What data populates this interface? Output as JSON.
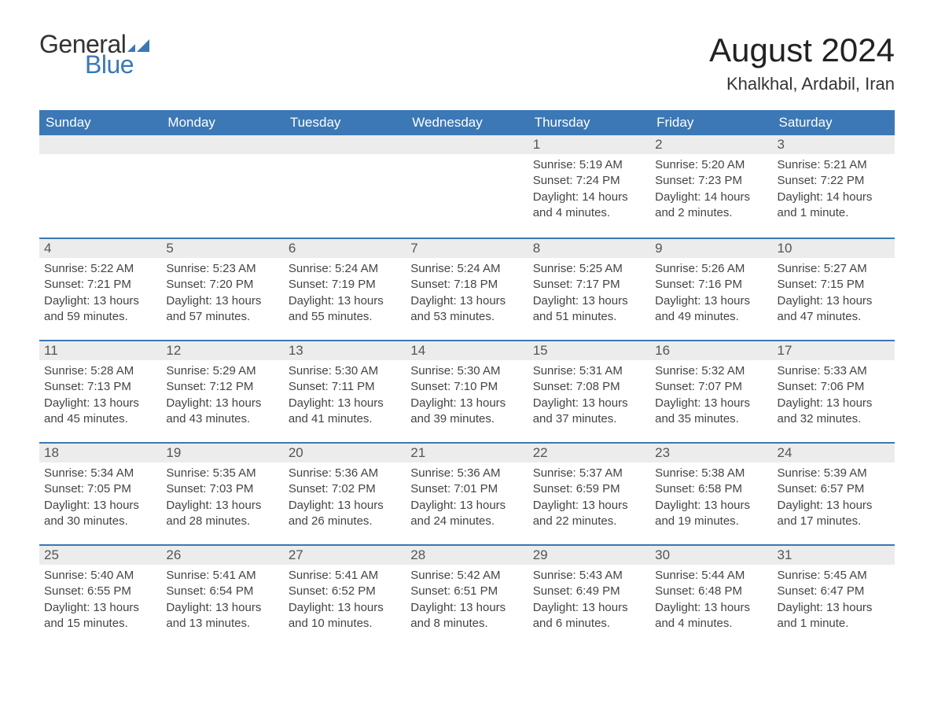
{
  "brand": {
    "word1": "General",
    "word2": "Blue",
    "word1_color": "#333333",
    "word2_color": "#3b78b5",
    "flag_color": "#3b78b5"
  },
  "title": "August 2024",
  "location": "Khalkhal, Ardabil, Iran",
  "colors": {
    "header_bg": "#3b78b5",
    "header_text": "#ffffff",
    "row_border": "#3b78b5",
    "daynum_bg": "#ececec",
    "text": "#444444",
    "background": "#ffffff"
  },
  "typography": {
    "title_fontsize": 42,
    "location_fontsize": 22,
    "weekday_fontsize": 17,
    "daynum_fontsize": 17,
    "body_fontsize": 15
  },
  "weekdays": [
    "Sunday",
    "Monday",
    "Tuesday",
    "Wednesday",
    "Thursday",
    "Friday",
    "Saturday"
  ],
  "weeks": [
    [
      null,
      null,
      null,
      null,
      {
        "n": "1",
        "sunrise": "Sunrise: 5:19 AM",
        "sunset": "Sunset: 7:24 PM",
        "daylight": "Daylight: 14 hours and 4 minutes."
      },
      {
        "n": "2",
        "sunrise": "Sunrise: 5:20 AM",
        "sunset": "Sunset: 7:23 PM",
        "daylight": "Daylight: 14 hours and 2 minutes."
      },
      {
        "n": "3",
        "sunrise": "Sunrise: 5:21 AM",
        "sunset": "Sunset: 7:22 PM",
        "daylight": "Daylight: 14 hours and 1 minute."
      }
    ],
    [
      {
        "n": "4",
        "sunrise": "Sunrise: 5:22 AM",
        "sunset": "Sunset: 7:21 PM",
        "daylight": "Daylight: 13 hours and 59 minutes."
      },
      {
        "n": "5",
        "sunrise": "Sunrise: 5:23 AM",
        "sunset": "Sunset: 7:20 PM",
        "daylight": "Daylight: 13 hours and 57 minutes."
      },
      {
        "n": "6",
        "sunrise": "Sunrise: 5:24 AM",
        "sunset": "Sunset: 7:19 PM",
        "daylight": "Daylight: 13 hours and 55 minutes."
      },
      {
        "n": "7",
        "sunrise": "Sunrise: 5:24 AM",
        "sunset": "Sunset: 7:18 PM",
        "daylight": "Daylight: 13 hours and 53 minutes."
      },
      {
        "n": "8",
        "sunrise": "Sunrise: 5:25 AM",
        "sunset": "Sunset: 7:17 PM",
        "daylight": "Daylight: 13 hours and 51 minutes."
      },
      {
        "n": "9",
        "sunrise": "Sunrise: 5:26 AM",
        "sunset": "Sunset: 7:16 PM",
        "daylight": "Daylight: 13 hours and 49 minutes."
      },
      {
        "n": "10",
        "sunrise": "Sunrise: 5:27 AM",
        "sunset": "Sunset: 7:15 PM",
        "daylight": "Daylight: 13 hours and 47 minutes."
      }
    ],
    [
      {
        "n": "11",
        "sunrise": "Sunrise: 5:28 AM",
        "sunset": "Sunset: 7:13 PM",
        "daylight": "Daylight: 13 hours and 45 minutes."
      },
      {
        "n": "12",
        "sunrise": "Sunrise: 5:29 AM",
        "sunset": "Sunset: 7:12 PM",
        "daylight": "Daylight: 13 hours and 43 minutes."
      },
      {
        "n": "13",
        "sunrise": "Sunrise: 5:30 AM",
        "sunset": "Sunset: 7:11 PM",
        "daylight": "Daylight: 13 hours and 41 minutes."
      },
      {
        "n": "14",
        "sunrise": "Sunrise: 5:30 AM",
        "sunset": "Sunset: 7:10 PM",
        "daylight": "Daylight: 13 hours and 39 minutes."
      },
      {
        "n": "15",
        "sunrise": "Sunrise: 5:31 AM",
        "sunset": "Sunset: 7:08 PM",
        "daylight": "Daylight: 13 hours and 37 minutes."
      },
      {
        "n": "16",
        "sunrise": "Sunrise: 5:32 AM",
        "sunset": "Sunset: 7:07 PM",
        "daylight": "Daylight: 13 hours and 35 minutes."
      },
      {
        "n": "17",
        "sunrise": "Sunrise: 5:33 AM",
        "sunset": "Sunset: 7:06 PM",
        "daylight": "Daylight: 13 hours and 32 minutes."
      }
    ],
    [
      {
        "n": "18",
        "sunrise": "Sunrise: 5:34 AM",
        "sunset": "Sunset: 7:05 PM",
        "daylight": "Daylight: 13 hours and 30 minutes."
      },
      {
        "n": "19",
        "sunrise": "Sunrise: 5:35 AM",
        "sunset": "Sunset: 7:03 PM",
        "daylight": "Daylight: 13 hours and 28 minutes."
      },
      {
        "n": "20",
        "sunrise": "Sunrise: 5:36 AM",
        "sunset": "Sunset: 7:02 PM",
        "daylight": "Daylight: 13 hours and 26 minutes."
      },
      {
        "n": "21",
        "sunrise": "Sunrise: 5:36 AM",
        "sunset": "Sunset: 7:01 PM",
        "daylight": "Daylight: 13 hours and 24 minutes."
      },
      {
        "n": "22",
        "sunrise": "Sunrise: 5:37 AM",
        "sunset": "Sunset: 6:59 PM",
        "daylight": "Daylight: 13 hours and 22 minutes."
      },
      {
        "n": "23",
        "sunrise": "Sunrise: 5:38 AM",
        "sunset": "Sunset: 6:58 PM",
        "daylight": "Daylight: 13 hours and 19 minutes."
      },
      {
        "n": "24",
        "sunrise": "Sunrise: 5:39 AM",
        "sunset": "Sunset: 6:57 PM",
        "daylight": "Daylight: 13 hours and 17 minutes."
      }
    ],
    [
      {
        "n": "25",
        "sunrise": "Sunrise: 5:40 AM",
        "sunset": "Sunset: 6:55 PM",
        "daylight": "Daylight: 13 hours and 15 minutes."
      },
      {
        "n": "26",
        "sunrise": "Sunrise: 5:41 AM",
        "sunset": "Sunset: 6:54 PM",
        "daylight": "Daylight: 13 hours and 13 minutes."
      },
      {
        "n": "27",
        "sunrise": "Sunrise: 5:41 AM",
        "sunset": "Sunset: 6:52 PM",
        "daylight": "Daylight: 13 hours and 10 minutes."
      },
      {
        "n": "28",
        "sunrise": "Sunrise: 5:42 AM",
        "sunset": "Sunset: 6:51 PM",
        "daylight": "Daylight: 13 hours and 8 minutes."
      },
      {
        "n": "29",
        "sunrise": "Sunrise: 5:43 AM",
        "sunset": "Sunset: 6:49 PM",
        "daylight": "Daylight: 13 hours and 6 minutes."
      },
      {
        "n": "30",
        "sunrise": "Sunrise: 5:44 AM",
        "sunset": "Sunset: 6:48 PM",
        "daylight": "Daylight: 13 hours and 4 minutes."
      },
      {
        "n": "31",
        "sunrise": "Sunrise: 5:45 AM",
        "sunset": "Sunset: 6:47 PM",
        "daylight": "Daylight: 13 hours and 1 minute."
      }
    ]
  ]
}
